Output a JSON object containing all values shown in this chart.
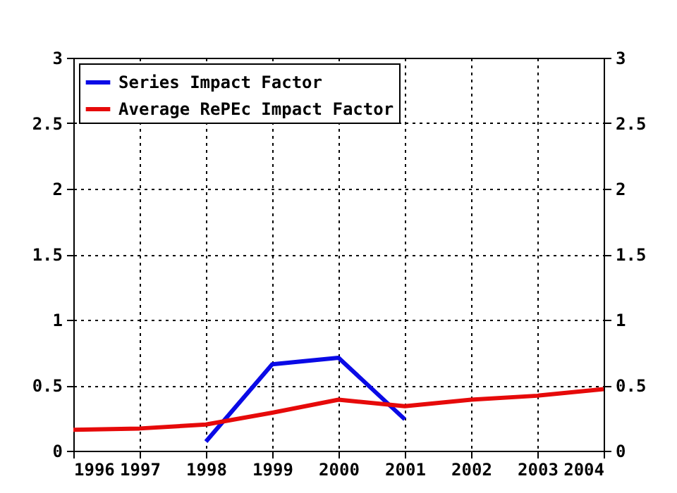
{
  "chart_data": {
    "type": "line",
    "x": [
      1996,
      1997,
      1998,
      1999,
      2000,
      2001,
      2002,
      2003,
      2004
    ],
    "series": [
      {
        "name": "Series Impact Factor",
        "color": "#0a0ae6",
        "values": [
          null,
          null,
          0.07,
          0.66,
          0.71,
          0.24,
          null,
          null,
          null
        ]
      },
      {
        "name": "Average RePEc Impact Factor",
        "color": "#e60a0a",
        "values": [
          0.16,
          0.17,
          0.2,
          0.29,
          0.39,
          0.34,
          0.39,
          0.42,
          0.47
        ]
      }
    ],
    "xlim": [
      1996,
      2004
    ],
    "xticks": [
      1996,
      1997,
      1998,
      1999,
      2000,
      2001,
      2002,
      2003,
      2004
    ],
    "ylim": [
      0,
      3
    ],
    "yticks": [
      0,
      0.5,
      1,
      1.5,
      2,
      2.5,
      3
    ],
    "y2lim": [
      0,
      3
    ],
    "y2ticks": [
      0,
      0.5,
      1,
      1.5,
      2,
      2.5,
      3
    ],
    "grid": true,
    "legend": "top left",
    "marker": "none",
    "line_style": "solid"
  }
}
